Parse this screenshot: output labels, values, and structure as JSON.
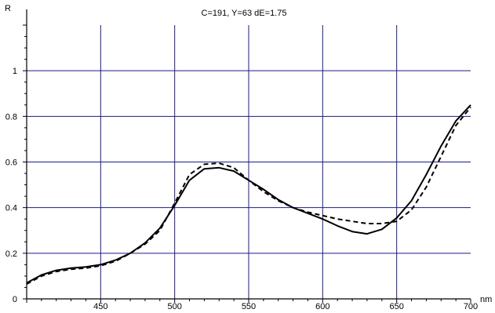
{
  "chart_data": {
    "type": "line",
    "title": "C=191, Y=63 dE=1.75",
    "xlabel": "nm",
    "ylabel": "R",
    "xlim": [
      400,
      700
    ],
    "ylim": [
      0,
      1.2
    ],
    "grid": true,
    "x_ticks": [
      "450",
      "500",
      "550",
      "600",
      "650",
      "700"
    ],
    "y_ticks": [
      "0",
      "0.2",
      "0.4",
      "0.6",
      "0.8",
      "1"
    ],
    "series": [
      {
        "style": "solid",
        "color": "#000000",
        "x": [
          400,
          410,
          420,
          430,
          440,
          450,
          460,
          470,
          480,
          490,
          500,
          510,
          520,
          530,
          540,
          550,
          560,
          570,
          580,
          590,
          600,
          610,
          620,
          630,
          640,
          650,
          660,
          670,
          680,
          690,
          700
        ],
        "y": [
          0.07,
          0.105,
          0.125,
          0.135,
          0.14,
          0.15,
          0.17,
          0.2,
          0.245,
          0.31,
          0.41,
          0.52,
          0.57,
          0.575,
          0.56,
          0.52,
          0.48,
          0.435,
          0.4,
          0.375,
          0.35,
          0.32,
          0.295,
          0.285,
          0.305,
          0.355,
          0.43,
          0.545,
          0.67,
          0.78,
          0.85
        ]
      },
      {
        "style": "dashed",
        "color": "#000000",
        "x": [
          400,
          410,
          420,
          430,
          440,
          450,
          460,
          470,
          480,
          490,
          500,
          510,
          520,
          530,
          540,
          550,
          560,
          570,
          580,
          590,
          600,
          610,
          620,
          630,
          640,
          650,
          660,
          670,
          680,
          690,
          700
        ],
        "y": [
          0.065,
          0.1,
          0.12,
          0.13,
          0.135,
          0.145,
          0.165,
          0.2,
          0.24,
          0.3,
          0.42,
          0.545,
          0.59,
          0.595,
          0.575,
          0.52,
          0.47,
          0.43,
          0.4,
          0.38,
          0.365,
          0.35,
          0.34,
          0.33,
          0.33,
          0.34,
          0.39,
          0.49,
          0.625,
          0.76,
          0.84
        ]
      }
    ]
  },
  "colors": {
    "grid": "#1a1a8c",
    "axis": "#000000",
    "background": "#ffffff"
  }
}
